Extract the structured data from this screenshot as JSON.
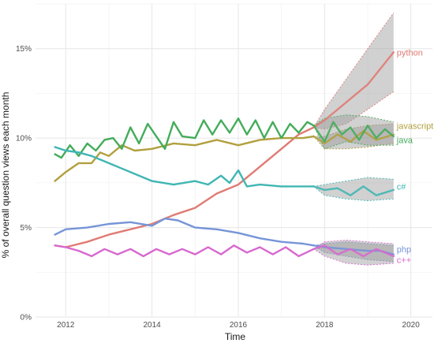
{
  "chart_data": {
    "type": "line",
    "xlabel": "Time",
    "ylabel": "% of overall question views each month",
    "xlim": [
      2011.3,
      2020.5
    ],
    "ylim": [
      0,
      17.5
    ],
    "x_ticks": [
      2012,
      2014,
      2016,
      2018,
      2020
    ],
    "x_tick_labels": [
      "2012",
      "2014",
      "2016",
      "2018",
      "2020"
    ],
    "y_ticks": [
      0,
      5,
      10,
      15
    ],
    "y_tick_labels": [
      "0%",
      "5%",
      "10%",
      "15%"
    ],
    "grid": true,
    "forecast_start": 2017.75,
    "series": [
      {
        "name": "python",
        "color": "#e07b73",
        "points": [
          [
            2011.75,
            4.0
          ],
          [
            2012.0,
            3.9
          ],
          [
            2012.5,
            4.2
          ],
          [
            2013.0,
            4.6
          ],
          [
            2013.5,
            4.9
          ],
          [
            2014.0,
            5.2
          ],
          [
            2014.5,
            5.7
          ],
          [
            2015.0,
            6.1
          ],
          [
            2015.5,
            6.9
          ],
          [
            2016.0,
            7.4
          ],
          [
            2016.5,
            8.4
          ],
          [
            2017.0,
            9.4
          ],
          [
            2017.4,
            10.2
          ],
          [
            2017.75,
            10.6
          ]
        ],
        "forecast": [
          [
            2017.75,
            10.6
          ],
          [
            2018.0,
            11.0
          ],
          [
            2018.5,
            12.0
          ],
          [
            2019.0,
            13.0
          ],
          [
            2019.3,
            13.9
          ],
          [
            2019.6,
            14.8
          ]
        ],
        "band": [
          [
            2017.75,
            10.6,
            10.6
          ],
          [
            2018.0,
            10.5,
            11.6
          ],
          [
            2018.5,
            10.8,
            13.3
          ],
          [
            2019.0,
            11.6,
            15.0
          ],
          [
            2019.6,
            12.6,
            17.0
          ]
        ]
      },
      {
        "name": "javascript",
        "color": "#b1a03e",
        "points": [
          [
            2011.75,
            7.6
          ],
          [
            2012.0,
            8.1
          ],
          [
            2012.3,
            8.6
          ],
          [
            2012.6,
            8.6
          ],
          [
            2012.8,
            9.2
          ],
          [
            2013.0,
            9.0
          ],
          [
            2013.3,
            9.6
          ],
          [
            2013.6,
            9.3
          ],
          [
            2014.0,
            9.4
          ],
          [
            2014.5,
            9.7
          ],
          [
            2015.0,
            9.6
          ],
          [
            2015.5,
            9.9
          ],
          [
            2016.0,
            9.6
          ],
          [
            2016.5,
            9.9
          ],
          [
            2017.0,
            10.0
          ],
          [
            2017.5,
            10.0
          ],
          [
            2017.75,
            10.1
          ]
        ],
        "forecast": [
          [
            2017.75,
            10.1
          ],
          [
            2018.0,
            9.7
          ],
          [
            2018.3,
            10.2
          ],
          [
            2018.6,
            9.8
          ],
          [
            2018.9,
            10.4
          ],
          [
            2019.2,
            9.9
          ],
          [
            2019.6,
            10.2
          ]
        ],
        "band": [
          [
            2017.75,
            10.1,
            10.1
          ],
          [
            2018.0,
            9.4,
            10.1
          ],
          [
            2018.5,
            9.4,
            10.5
          ],
          [
            2019.0,
            9.5,
            10.7
          ],
          [
            2019.6,
            9.7,
            10.8
          ]
        ]
      },
      {
        "name": "java",
        "color": "#44ac5a",
        "points": [
          [
            2011.75,
            9.1
          ],
          [
            2011.9,
            8.9
          ],
          [
            2012.1,
            9.6
          ],
          [
            2012.3,
            9.0
          ],
          [
            2012.5,
            9.7
          ],
          [
            2012.7,
            9.3
          ],
          [
            2012.9,
            9.9
          ],
          [
            2013.1,
            10.0
          ],
          [
            2013.3,
            9.4
          ],
          [
            2013.5,
            10.6
          ],
          [
            2013.7,
            9.7
          ],
          [
            2013.9,
            10.8
          ],
          [
            2014.1,
            10.1
          ],
          [
            2014.3,
            9.4
          ],
          [
            2014.5,
            10.9
          ],
          [
            2014.7,
            10.1
          ],
          [
            2015.0,
            10.0
          ],
          [
            2015.2,
            11.0
          ],
          [
            2015.4,
            10.2
          ],
          [
            2015.6,
            11.0
          ],
          [
            2015.8,
            10.3
          ],
          [
            2016.0,
            11.1
          ],
          [
            2016.2,
            10.2
          ],
          [
            2016.4,
            11.0
          ],
          [
            2016.6,
            10.0
          ],
          [
            2016.8,
            10.9
          ],
          [
            2017.0,
            10.0
          ],
          [
            2017.2,
            10.8
          ],
          [
            2017.4,
            10.3
          ],
          [
            2017.6,
            10.9
          ],
          [
            2017.75,
            10.7
          ]
        ],
        "forecast": [
          [
            2017.75,
            10.7
          ],
          [
            2018.0,
            9.8
          ],
          [
            2018.2,
            10.9
          ],
          [
            2018.4,
            10.2
          ],
          [
            2018.6,
            10.6
          ],
          [
            2018.8,
            9.9
          ],
          [
            2019.0,
            10.7
          ],
          [
            2019.2,
            10.0
          ],
          [
            2019.4,
            10.5
          ],
          [
            2019.6,
            10.1
          ]
        ],
        "band": [
          [
            2017.75,
            10.7,
            10.7
          ],
          [
            2018.0,
            9.4,
            11.1
          ],
          [
            2018.5,
            9.8,
            11.3
          ],
          [
            2019.0,
            9.6,
            11.2
          ],
          [
            2019.6,
            9.6,
            10.9
          ]
        ]
      },
      {
        "name": "c#",
        "color": "#3fb6b3",
        "points": [
          [
            2011.75,
            9.5
          ],
          [
            2012.0,
            9.3
          ],
          [
            2012.3,
            9.2
          ],
          [
            2012.6,
            9.0
          ],
          [
            2013.0,
            8.6
          ],
          [
            2013.3,
            8.3
          ],
          [
            2013.6,
            8.0
          ],
          [
            2014.0,
            7.6
          ],
          [
            2014.5,
            7.4
          ],
          [
            2015.0,
            7.6
          ],
          [
            2015.3,
            7.4
          ],
          [
            2015.6,
            7.9
          ],
          [
            2015.8,
            7.5
          ],
          [
            2016.0,
            8.2
          ],
          [
            2016.2,
            7.3
          ],
          [
            2016.5,
            7.4
          ],
          [
            2017.0,
            7.3
          ],
          [
            2017.5,
            7.3
          ],
          [
            2017.75,
            7.3
          ]
        ],
        "forecast": [
          [
            2017.75,
            7.3
          ],
          [
            2018.0,
            7.1
          ],
          [
            2018.3,
            7.2
          ],
          [
            2018.6,
            6.8
          ],
          [
            2018.9,
            7.3
          ],
          [
            2019.2,
            6.8
          ],
          [
            2019.6,
            7.1
          ]
        ],
        "band": [
          [
            2017.75,
            7.3,
            7.3
          ],
          [
            2018.0,
            6.8,
            7.4
          ],
          [
            2018.5,
            6.6,
            7.6
          ],
          [
            2019.0,
            6.5,
            7.8
          ],
          [
            2019.6,
            6.6,
            7.7
          ]
        ]
      },
      {
        "name": "php",
        "color": "#7694d8",
        "points": [
          [
            2011.75,
            4.6
          ],
          [
            2012.0,
            4.9
          ],
          [
            2012.5,
            5.0
          ],
          [
            2013.0,
            5.2
          ],
          [
            2013.5,
            5.3
          ],
          [
            2014.0,
            5.1
          ],
          [
            2014.3,
            5.5
          ],
          [
            2014.6,
            5.4
          ],
          [
            2015.0,
            5.0
          ],
          [
            2015.5,
            4.9
          ],
          [
            2016.0,
            4.7
          ],
          [
            2016.5,
            4.4
          ],
          [
            2017.0,
            4.2
          ],
          [
            2017.5,
            4.1
          ],
          [
            2017.75,
            4.0
          ]
        ],
        "forecast": [
          [
            2017.75,
            4.0
          ],
          [
            2018.0,
            3.9
          ],
          [
            2018.5,
            3.8
          ],
          [
            2019.0,
            3.7
          ],
          [
            2019.3,
            3.7
          ],
          [
            2019.6,
            3.5
          ]
        ],
        "band": [
          [
            2017.75,
            4.0,
            4.0
          ],
          [
            2018.0,
            3.6,
            4.1
          ],
          [
            2018.5,
            3.4,
            4.2
          ],
          [
            2019.0,
            3.2,
            4.1
          ],
          [
            2019.6,
            3.1,
            4.0
          ]
        ]
      },
      {
        "name": "c++",
        "color": "#d868cf",
        "points": [
          [
            2011.75,
            4.0
          ],
          [
            2012.0,
            3.9
          ],
          [
            2012.3,
            3.7
          ],
          [
            2012.6,
            3.4
          ],
          [
            2012.9,
            3.8
          ],
          [
            2013.2,
            3.5
          ],
          [
            2013.5,
            3.8
          ],
          [
            2013.8,
            3.4
          ],
          [
            2014.1,
            3.8
          ],
          [
            2014.4,
            3.5
          ],
          [
            2014.7,
            3.8
          ],
          [
            2015.0,
            3.5
          ],
          [
            2015.3,
            3.9
          ],
          [
            2015.6,
            3.5
          ],
          [
            2015.9,
            4.0
          ],
          [
            2016.2,
            3.6
          ],
          [
            2016.5,
            3.9
          ],
          [
            2016.8,
            3.5
          ],
          [
            2017.1,
            3.9
          ],
          [
            2017.4,
            3.4
          ],
          [
            2017.75,
            3.8
          ]
        ],
        "forecast": [
          [
            2017.75,
            3.8
          ],
          [
            2018.0,
            4.0
          ],
          [
            2018.3,
            3.5
          ],
          [
            2018.6,
            3.8
          ],
          [
            2018.9,
            3.4
          ],
          [
            2019.2,
            3.8
          ],
          [
            2019.6,
            3.4
          ]
        ],
        "band": [
          [
            2017.75,
            3.8,
            3.8
          ],
          [
            2018.0,
            3.4,
            4.2
          ],
          [
            2018.5,
            3.0,
            4.3
          ],
          [
            2019.0,
            2.9,
            4.2
          ],
          [
            2019.6,
            3.0,
            4.1
          ]
        ]
      }
    ]
  }
}
